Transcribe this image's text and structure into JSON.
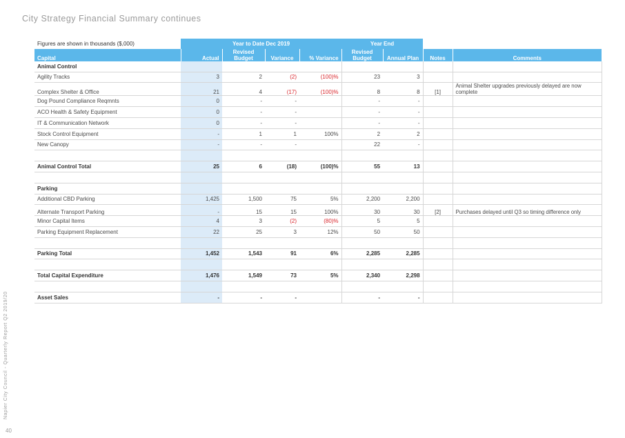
{
  "page": {
    "title": "City Strategy Financial Summary continues",
    "side_text": "Napier City Council - Quarterly Report Q2 2019/20",
    "page_number": "40"
  },
  "table": {
    "figures_note": "Figures are shown in thousands ($,000)",
    "group_ytd": "Year to Date Dec 2019",
    "group_ye": "Year End",
    "headers": {
      "capital": "Capital",
      "actual": "Actual",
      "revised_budget": "Revised Budget",
      "variance": "Variance",
      "pct_variance": "% Variance",
      "ye_revised_budget": "Revised Budget",
      "annual_plan": "Annual Plan",
      "notes": "Notes",
      "comments": "Comments"
    },
    "rows": [
      {
        "name": "Animal Control",
        "actual": "",
        "revised": "",
        "variance": "",
        "pct": "",
        "ye_revised": "",
        "plan": "",
        "notes": "",
        "comments": "",
        "type": "section"
      },
      {
        "name": "Agility Tracks",
        "actual": "3",
        "revised": "2",
        "variance": "(2)",
        "pct": "(100)%",
        "ye_revised": "23",
        "plan": "3",
        "notes": "",
        "comments": "",
        "type": "row"
      },
      {
        "name": "Complex Shelter & Office",
        "actual": "21",
        "revised": "4",
        "variance": "(17)",
        "pct": "(100)%",
        "ye_revised": "8",
        "plan": "8",
        "notes": "[1]",
        "comments": "Animal Shelter upgrades previously delayed are now complete",
        "type": "tall"
      },
      {
        "name": "Dog Pound Compliance Reqmnts",
        "actual": "0",
        "revised": "-",
        "variance": "-",
        "pct": "",
        "ye_revised": "-",
        "plan": "-",
        "notes": "",
        "comments": "",
        "type": "row"
      },
      {
        "name": "ACO Health & Safety Equipment",
        "actual": "0",
        "revised": "-",
        "variance": "-",
        "pct": "",
        "ye_revised": "-",
        "plan": "-",
        "notes": "",
        "comments": "",
        "type": "row"
      },
      {
        "name": "IT & Communication Network",
        "actual": "0",
        "revised": "-",
        "variance": "-",
        "pct": "",
        "ye_revised": "-",
        "plan": "-",
        "notes": "",
        "comments": "",
        "type": "row"
      },
      {
        "name": "Stock Control Equipment",
        "actual": "-",
        "revised": "1",
        "variance": "1",
        "pct": "100%",
        "ye_revised": "2",
        "plan": "2",
        "notes": "",
        "comments": "",
        "type": "row"
      },
      {
        "name": "New Canopy",
        "actual": "-",
        "revised": "-",
        "variance": "-",
        "pct": "",
        "ye_revised": "22",
        "plan": "-",
        "notes": "",
        "comments": "",
        "type": "row"
      },
      {
        "name": "",
        "actual": "",
        "revised": "",
        "variance": "",
        "pct": "",
        "ye_revised": "",
        "plan": "",
        "notes": "",
        "comments": "",
        "type": "row"
      },
      {
        "name": "Animal Control Total",
        "actual": "25",
        "revised": "6",
        "variance": "(18)",
        "pct": "(100)%",
        "ye_revised": "55",
        "plan": "13",
        "notes": "",
        "comments": "",
        "type": "total"
      },
      {
        "name": "",
        "actual": "",
        "revised": "",
        "variance": "",
        "pct": "",
        "ye_revised": "",
        "plan": "",
        "notes": "",
        "comments": "",
        "type": "row"
      },
      {
        "name": "Parking",
        "actual": "",
        "revised": "",
        "variance": "",
        "pct": "",
        "ye_revised": "",
        "plan": "",
        "notes": "",
        "comments": "",
        "type": "section"
      },
      {
        "name": "Additional CBD Parking",
        "actual": "1,425",
        "revised": "1,500",
        "variance": "75",
        "pct": "5%",
        "ye_revised": "2,200",
        "plan": "2,200",
        "notes": "",
        "comments": "",
        "type": "row"
      },
      {
        "name": "Alternate Transport Parking",
        "actual": "-",
        "revised": "15",
        "variance": "15",
        "pct": "100%",
        "ye_revised": "30",
        "plan": "30",
        "notes": "[2]",
        "comments": "Purchases delayed until Q3 so timing difference only",
        "type": "tall"
      },
      {
        "name": "Minor Capital Items",
        "actual": "4",
        "revised": "3",
        "variance": "(2)",
        "pct": "(80)%",
        "ye_revised": "5",
        "plan": "5",
        "notes": "",
        "comments": "",
        "type": "row"
      },
      {
        "name": "Parking Equipment Replacement",
        "actual": "22",
        "revised": "25",
        "variance": "3",
        "pct": "12%",
        "ye_revised": "50",
        "plan": "50",
        "notes": "",
        "comments": "",
        "type": "row"
      },
      {
        "name": "",
        "actual": "",
        "revised": "",
        "variance": "",
        "pct": "",
        "ye_revised": "",
        "plan": "",
        "notes": "",
        "comments": "",
        "type": "row"
      },
      {
        "name": "Parking Total",
        "actual": "1,452",
        "revised": "1,543",
        "variance": "91",
        "pct": "6%",
        "ye_revised": "2,285",
        "plan": "2,285",
        "notes": "",
        "comments": "",
        "type": "total"
      },
      {
        "name": "",
        "actual": "",
        "revised": "",
        "variance": "",
        "pct": "",
        "ye_revised": "",
        "plan": "",
        "notes": "",
        "comments": "",
        "type": "row"
      },
      {
        "name": "Total Capital Expenditure",
        "actual": "1,476",
        "revised": "1,549",
        "variance": "73",
        "pct": "5%",
        "ye_revised": "2,340",
        "plan": "2,298",
        "notes": "",
        "comments": "",
        "type": "total"
      },
      {
        "name": "",
        "actual": "",
        "revised": "",
        "variance": "",
        "pct": "",
        "ye_revised": "",
        "plan": "",
        "notes": "",
        "comments": "",
        "type": "row"
      },
      {
        "name": "Asset Sales",
        "actual": "-",
        "revised": "-",
        "variance": "-",
        "pct": "",
        "ye_revised": "-",
        "plan": "-",
        "notes": "",
        "comments": "",
        "type": "total"
      }
    ]
  },
  "colors": {
    "header_blue": "#5bb7ea",
    "shade_blue": "#dcebf8",
    "negative_red": "#d9262c"
  }
}
